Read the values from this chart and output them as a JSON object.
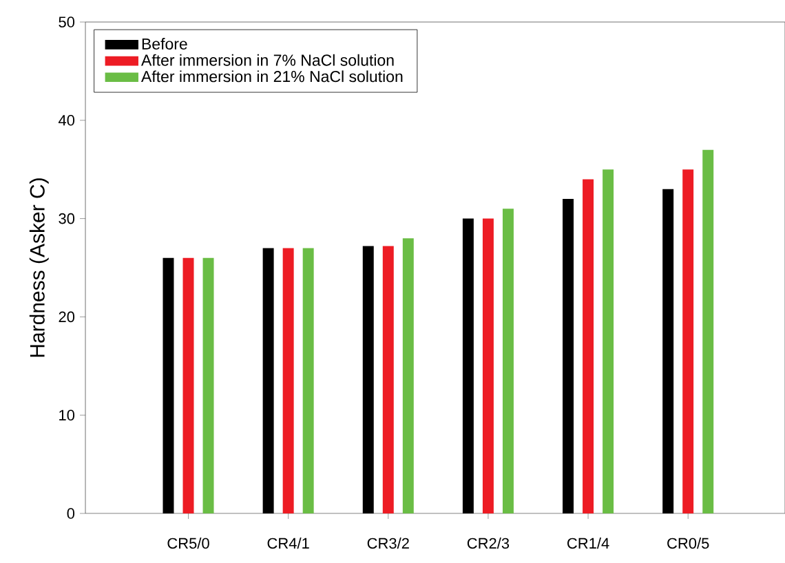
{
  "chart_data": {
    "type": "bar",
    "ylabel": "Hardness (Asker C)",
    "categories": [
      "CR5/0",
      "CR4/1",
      "CR3/2",
      "CR2/3",
      "CR1/4",
      "CR0/5"
    ],
    "series": [
      {
        "name": "Before",
        "color": "#000000",
        "values": [
          26,
          27,
          27.2,
          30,
          32,
          33
        ]
      },
      {
        "name": "After immersion in 7% NaCl solution",
        "color": "#ed1c24",
        "values": [
          26,
          27,
          27.2,
          30,
          34,
          35
        ]
      },
      {
        "name": "After immersion in 21% NaCl solution",
        "color": "#6abd45",
        "values": [
          26,
          27,
          28,
          31,
          35,
          37
        ]
      }
    ],
    "ylim": [
      0,
      50
    ],
    "yticks": [
      0,
      10,
      20,
      30,
      40,
      50
    ],
    "grid": false,
    "legend": "top left"
  }
}
